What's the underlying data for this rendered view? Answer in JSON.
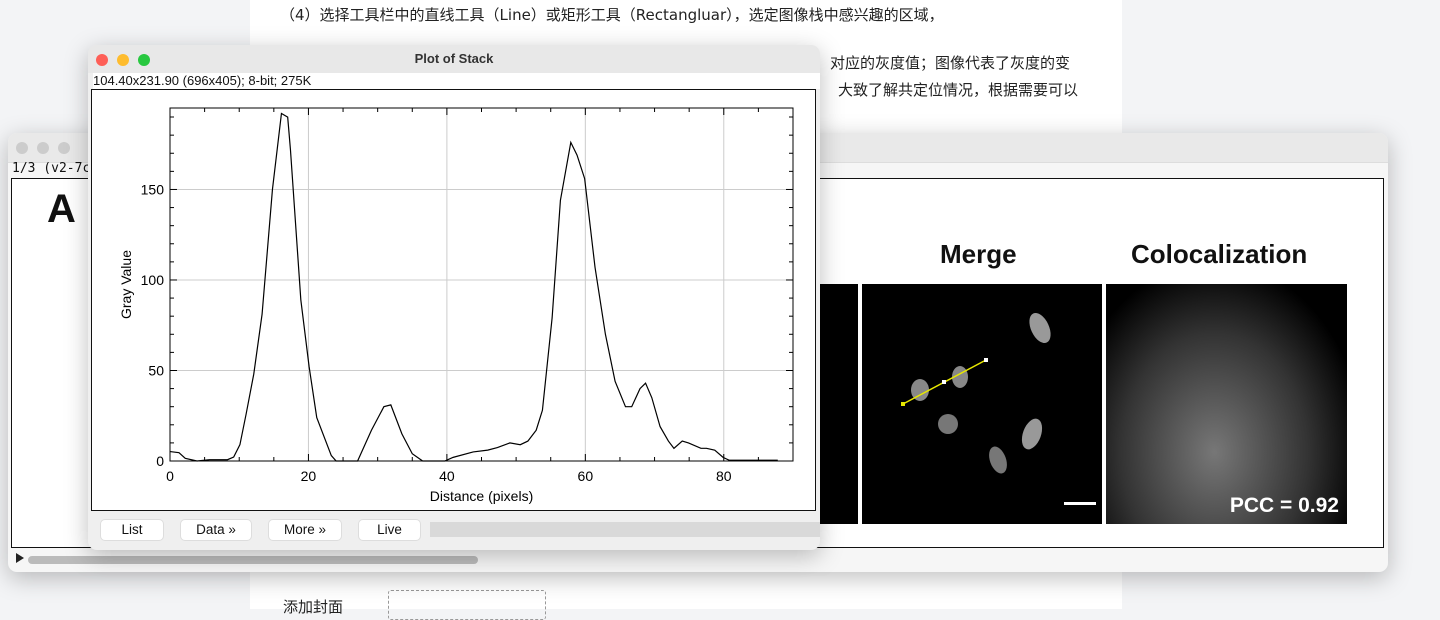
{
  "document": {
    "line1": "（4）选择工具栏中的直线工具（Line）或矩形工具（Rectangluar），选定图像栈中感兴趣的区域，",
    "line2_visible": "对应的灰度值；图像代表了灰度的变",
    "line3_visible": "大致了解共定位情况，根据需要可以",
    "bottom_label": "添加封面"
  },
  "image_window": {
    "subtitle": "1/3 (v2-7c",
    "panel_letter": "A",
    "merge_title": "Merge",
    "coloc_title": "Colocalization",
    "pcc": "PCC = 0.92"
  },
  "plot_window": {
    "title": "Plot of Stack",
    "info": "104.40x231.90   (696x405); 8-bit; 275K",
    "buttons": {
      "list": "List",
      "data": "Data »",
      "more": "More »",
      "live": "Live"
    }
  },
  "chart_data": {
    "type": "line",
    "xlabel": "Distance (pixels)",
    "ylabel": "Gray Value",
    "xlim": [
      0,
      90
    ],
    "ylim": [
      0,
      195
    ],
    "xticks": [
      0,
      20,
      40,
      60,
      80
    ],
    "yticks": [
      0,
      50,
      100,
      150
    ],
    "grid": true,
    "series": [
      {
        "x": [
          0,
          1.3,
          2.2,
          3.9,
          5.7,
          8.3,
          9.2,
          10.1,
          11,
          12.1,
          13.3,
          14.8,
          16.1,
          17,
          17.4,
          18.9,
          20.1,
          21.2,
          23.3,
          24,
          27.1,
          29.1,
          30.9,
          31.9,
          33.5,
          35,
          36.5,
          39.7,
          40.9,
          43.8,
          45.9,
          47.3,
          49.1,
          50.6,
          51.7,
          52.9,
          53.8,
          55.2,
          56.4,
          57.9,
          58.8,
          59.9,
          61.4,
          62.9,
          64.3,
          65.8,
          66.7,
          67.9,
          68.7,
          69.6,
          70.8,
          72,
          72.8,
          74,
          74.9,
          76.7,
          77.5,
          78.7,
          79.9,
          80.8,
          87.8
        ],
        "y": [
          5.2,
          4.6,
          1.5,
          0,
          0.7,
          0.7,
          2.2,
          9,
          26,
          48,
          81,
          150,
          192,
          190,
          172,
          89,
          52,
          24,
          3,
          0,
          0,
          17,
          30,
          31,
          15,
          4,
          0,
          0,
          2,
          5,
          6,
          7.4,
          10,
          9,
          11,
          17,
          28,
          79,
          144,
          176,
          169,
          156,
          107,
          70,
          44,
          30,
          30,
          40,
          43,
          35,
          19,
          11,
          7,
          11,
          10,
          7,
          7,
          6,
          2,
          0.4,
          0.4
        ]
      }
    ]
  }
}
